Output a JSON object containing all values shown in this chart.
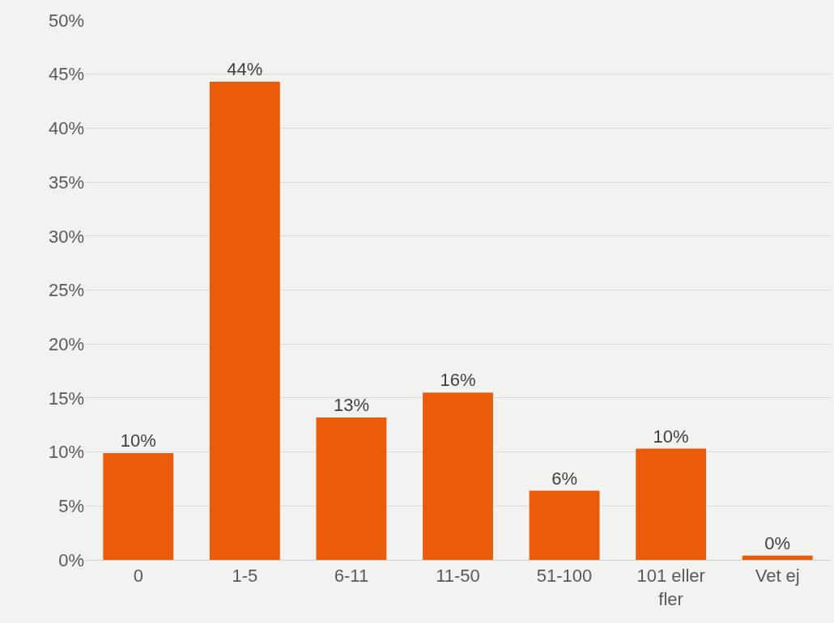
{
  "chart_data": {
    "type": "bar",
    "categories": [
      "0",
      "1-5",
      "6-11",
      "11-50",
      "51-100",
      "101 eller fler",
      "Vet ej"
    ],
    "values": [
      9.9,
      44.3,
      13.2,
      15.5,
      6.4,
      10.3,
      0.4
    ],
    "value_labels": [
      "10%",
      "44%",
      "13%",
      "16%",
      "6%",
      "10%",
      "0%"
    ],
    "color": "#ea5b0c",
    "ylim": [
      0,
      50
    ],
    "yticks": [
      {
        "value": 0,
        "label": "0%"
      },
      {
        "value": 5,
        "label": "5%"
      },
      {
        "value": 10,
        "label": "10%"
      },
      {
        "value": 15,
        "label": "15%"
      },
      {
        "value": 20,
        "label": "20%"
      },
      {
        "value": 25,
        "label": "25%"
      },
      {
        "value": 30,
        "label": "30%"
      },
      {
        "value": 35,
        "label": "35%"
      },
      {
        "value": 40,
        "label": "40%"
      },
      {
        "value": 45,
        "label": "45%"
      },
      {
        "value": 50,
        "label": "50%"
      }
    ],
    "grid": "y",
    "legend": false
  }
}
